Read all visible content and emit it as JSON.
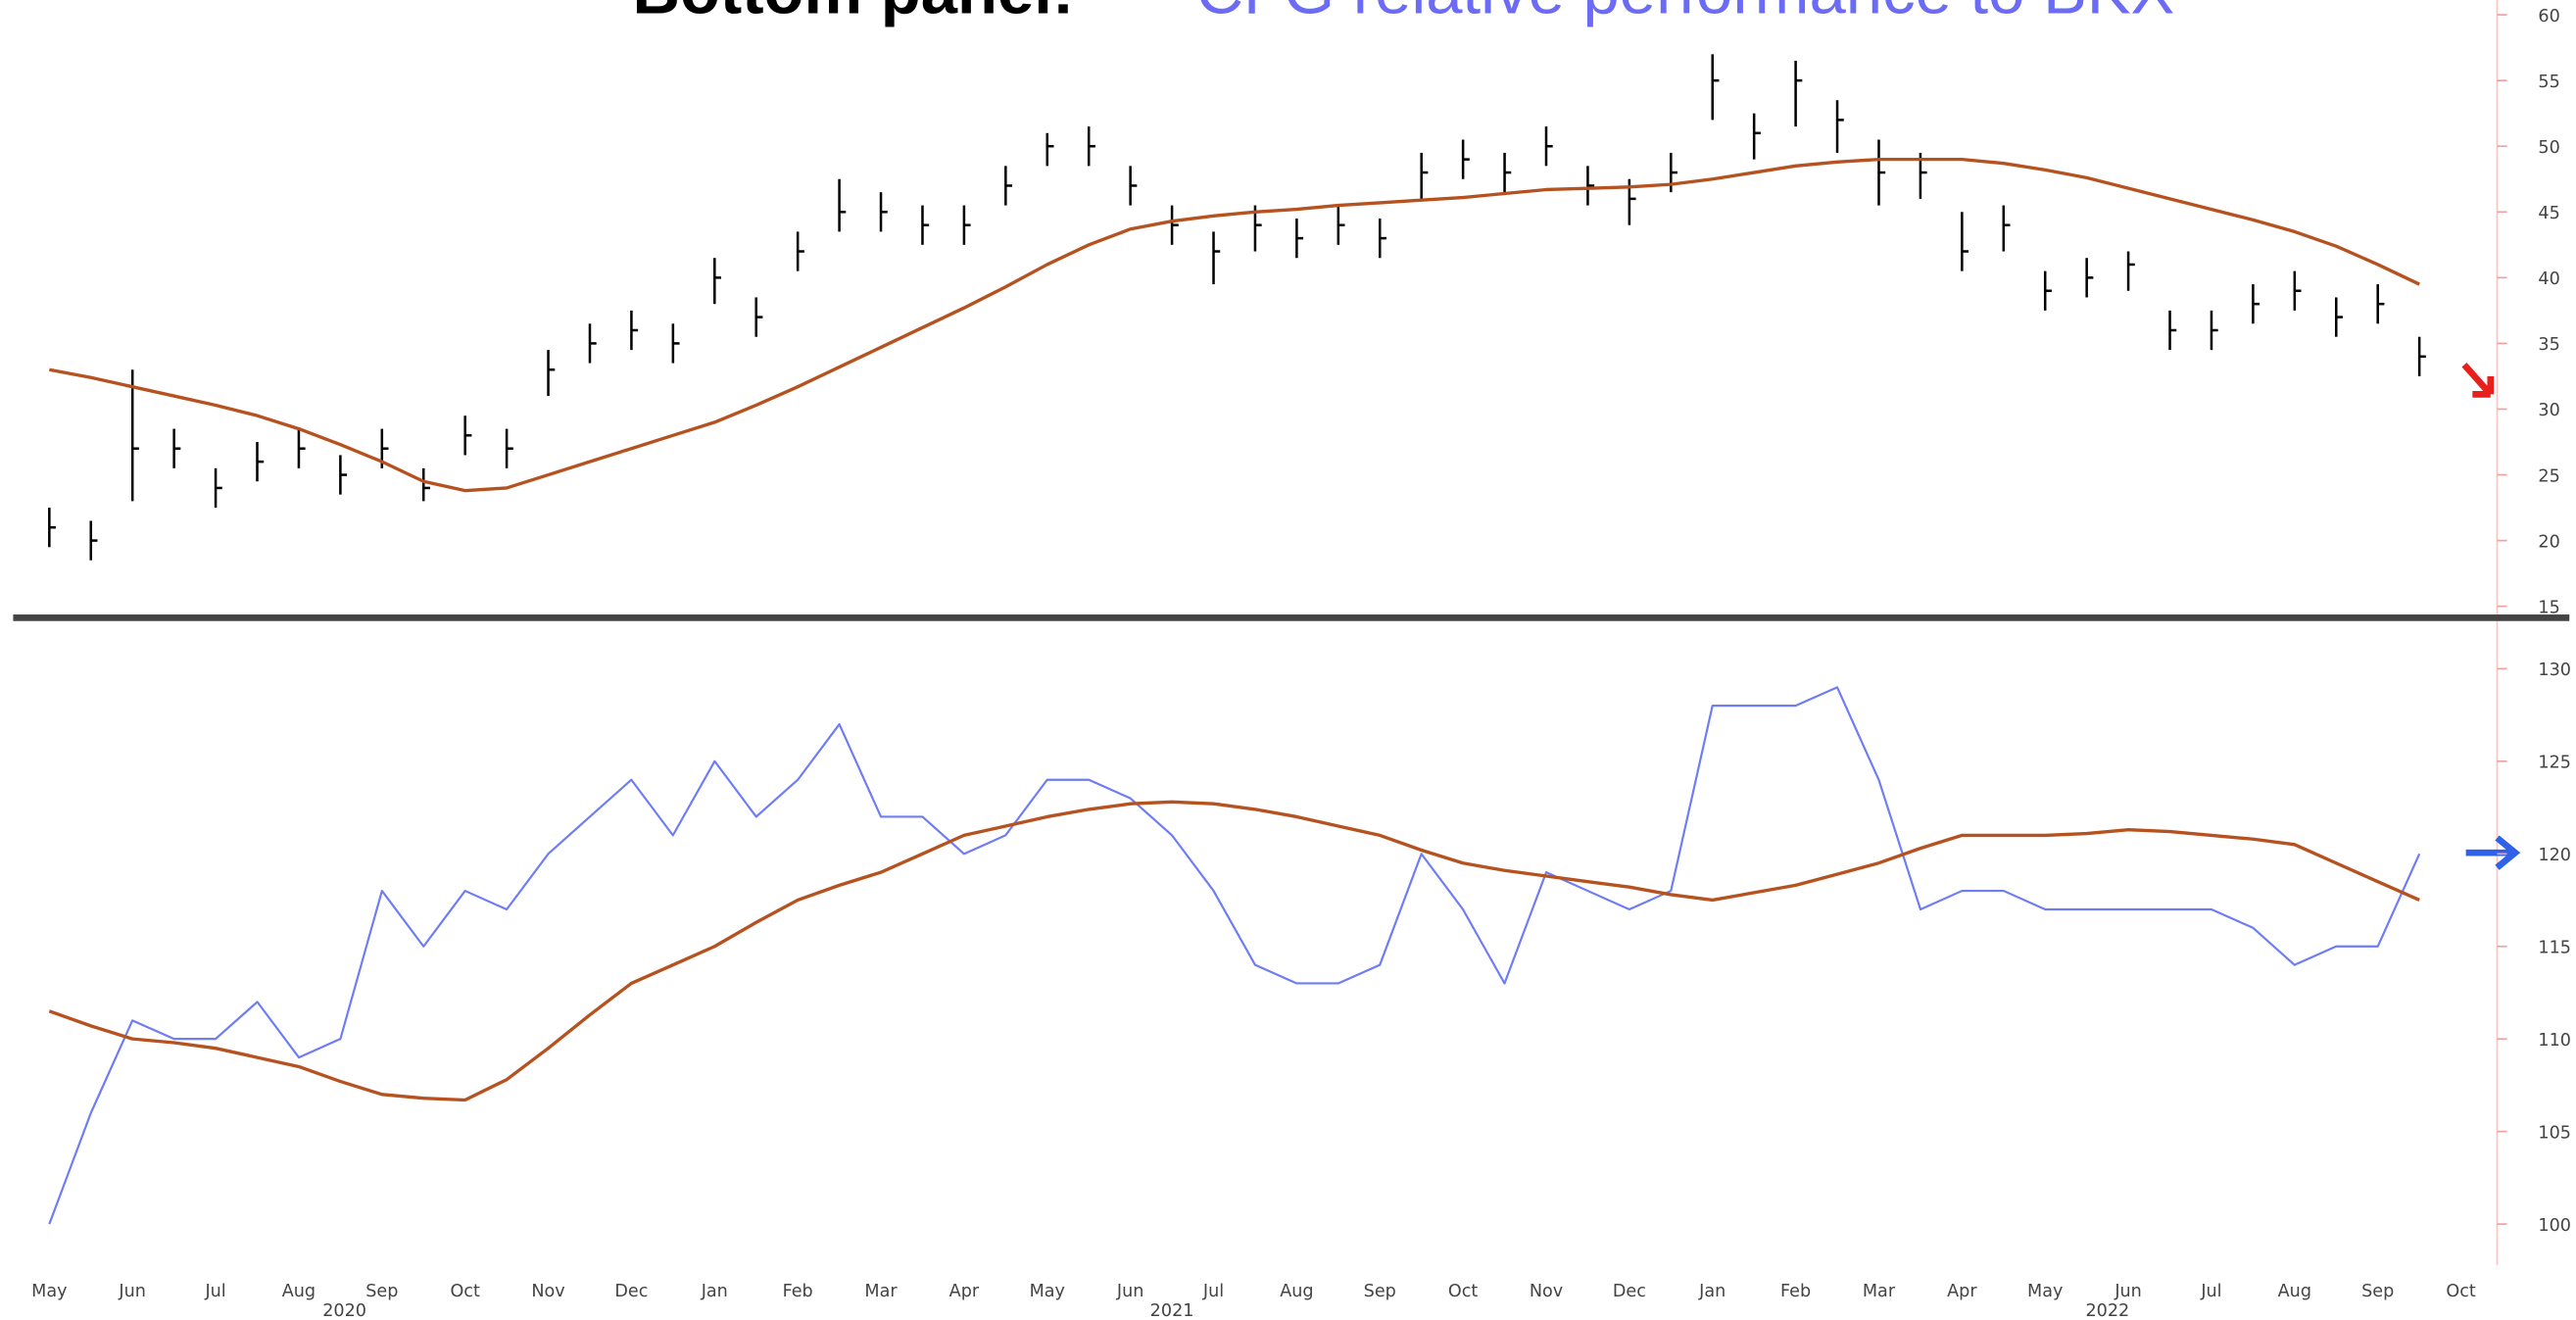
{
  "chart_data": [
    {
      "type": "hlc",
      "color": "#000000",
      "high": [
        22.5,
        21.5,
        33,
        28.5,
        25.5,
        27.5,
        28.5,
        26.5,
        28.5,
        25.5,
        29.5,
        28.5,
        34.5,
        36.5,
        37.5,
        36.5,
        41.5,
        38.5,
        43.5,
        47.5,
        46.5,
        45.5,
        45.5,
        48.5,
        51,
        51.5,
        48.5,
        45.5,
        43.5,
        45.5,
        44.5,
        45.5,
        44.5,
        49.5,
        50.5,
        49.5,
        51.5,
        48.5,
        47.5,
        49.5,
        57,
        52.5,
        56.5,
        53.5,
        50.5,
        49.5,
        45,
        45.5,
        40.5,
        41.5,
        42,
        37.5,
        37.5,
        39.5,
        40.5,
        38.5,
        39.5,
        35.5,
        null
      ],
      "low": [
        19.5,
        18.5,
        23,
        25.5,
        22.5,
        24.5,
        25.5,
        23.5,
        25.5,
        23,
        26.5,
        25.5,
        31,
        33.5,
        34.5,
        33.5,
        38,
        35.5,
        40.5,
        43.5,
        43.5,
        42.5,
        42.5,
        45.5,
        48.5,
        48.5,
        45.5,
        42.5,
        39.5,
        42,
        41.5,
        42.5,
        41.5,
        46,
        47.5,
        46.5,
        48.5,
        45.5,
        44,
        46.5,
        52,
        49,
        51.5,
        49.5,
        45.5,
        46,
        40.5,
        42,
        37.5,
        38.5,
        39,
        34.5,
        34.5,
        36.5,
        37.5,
        35.5,
        36.5,
        32.5,
        null
      ],
      "close": [
        21,
        20,
        27,
        27,
        24,
        26,
        27,
        25,
        27,
        24,
        28,
        27,
        33,
        35,
        36,
        35,
        40,
        37,
        42,
        45,
        45,
        44,
        44,
        47,
        50,
        50,
        47,
        44,
        42,
        44,
        43,
        44,
        43,
        48,
        49,
        48,
        50,
        47,
        46,
        48,
        55,
        51,
        55,
        52,
        48,
        48,
        42,
        44,
        39,
        40,
        41,
        36,
        36,
        38,
        39,
        37,
        38,
        34,
        null
      ],
      "overlay": {
        "color": "#b5521f",
        "values": [
          33,
          32.4,
          31.7,
          31,
          30.3,
          29.5,
          28.5,
          27.3,
          26,
          24.5,
          23.8,
          24,
          25,
          26,
          27,
          28,
          29,
          30.3,
          31.7,
          33.2,
          34.7,
          36.2,
          37.7,
          39.3,
          41,
          42.5,
          43.7,
          44.3,
          44.7,
          45,
          45.2,
          45.5,
          45.7,
          45.9,
          46.1,
          46.4,
          46.7,
          46.8,
          46.9,
          47.1,
          47.5,
          48,
          48.5,
          48.8,
          49,
          49,
          49,
          48.7,
          48.2,
          47.6,
          46.8,
          46,
          45.2,
          44.4,
          43.5,
          42.4,
          41,
          39.5,
          null
        ]
      },
      "ylim": [
        15,
        60
      ],
      "yticks": [
        15,
        20,
        25,
        30,
        35,
        40,
        45,
        50,
        55,
        60
      ]
    },
    {
      "type": "line",
      "title_prefix": "Bottom panel:",
      "title": "CFG relative performance to BKX",
      "categories": [
        "May",
        null,
        "Jun",
        null,
        "Jul",
        null,
        "Aug",
        null,
        "Sep",
        null,
        "Oct",
        null,
        "Nov",
        null,
        "Dec",
        null,
        "Jan",
        null,
        "Feb",
        null,
        "Mar",
        null,
        "Apr",
        null,
        "May",
        null,
        "Jun",
        null,
        "Jul",
        null,
        "Aug",
        null,
        "Sep",
        null,
        "Oct",
        null,
        "Nov",
        null,
        "Dec",
        null,
        "Jan",
        null,
        "Feb",
        null,
        "Mar",
        null,
        "Apr",
        null,
        "May",
        null,
        "Jun",
        null,
        "Jul",
        null,
        "Aug",
        null,
        "Sep",
        null,
        "Oct"
      ],
      "year_labels": [
        {
          "value": 7.1,
          "label": "2020"
        },
        {
          "value": 27,
          "label": "2021"
        },
        {
          "value": 49.5,
          "label": "2022"
        }
      ],
      "series": [
        {
          "color": "#6e7cf5",
          "values": [
            100,
            106,
            111,
            110,
            110,
            112,
            109,
            110,
            118,
            115,
            118,
            117,
            120,
            122,
            124,
            121,
            125,
            122,
            124,
            127,
            122,
            122,
            120,
            121,
            124,
            124,
            123,
            121,
            118,
            114,
            113,
            113,
            114,
            120,
            117,
            113,
            119,
            118,
            117,
            118,
            128,
            128,
            128,
            129,
            124,
            117,
            118,
            118,
            117,
            117,
            117,
            117,
            117,
            116,
            114,
            115,
            115,
            120,
            null
          ]
        },
        {
          "color": "#b5521f",
          "values": [
            111.5,
            110.7,
            110,
            109.8,
            109.5,
            109,
            108.5,
            107.7,
            107,
            106.8,
            106.7,
            107.8,
            109.5,
            111.3,
            113,
            114,
            115,
            116.3,
            117.5,
            118.3,
            119,
            120,
            121,
            121.5,
            122,
            122.4,
            122.7,
            122.8,
            122.7,
            122.4,
            122,
            121.5,
            121,
            120.2,
            119.5,
            119.1,
            118.8,
            118.5,
            118.2,
            117.8,
            117.5,
            117.9,
            118.3,
            118.9,
            119.5,
            120.3,
            121,
            121,
            121,
            121.1,
            121.3,
            121.2,
            121,
            120.8,
            120.5,
            119.5,
            118.5,
            117.5,
            null
          ]
        }
      ],
      "ylim": [
        100,
        130
      ],
      "yticks": [
        100,
        105,
        110,
        115,
        120,
        125,
        130
      ]
    }
  ]
}
